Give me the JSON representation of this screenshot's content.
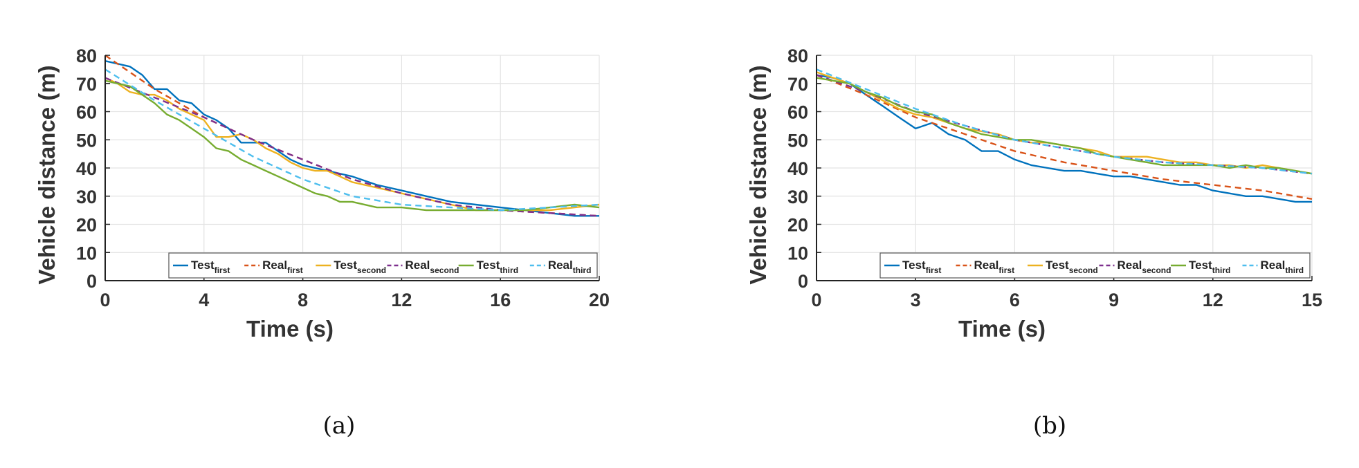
{
  "chart_data": [
    {
      "type": "line",
      "caption": "(a)",
      "xlabel": "Time (s)",
      "ylabel": "Vehicle distance (m)",
      "xlim": [
        0,
        20
      ],
      "ylim": [
        0,
        80
      ],
      "xticks": [
        0,
        4,
        8,
        12,
        16,
        20
      ],
      "yticks": [
        0,
        10,
        20,
        30,
        40,
        50,
        60,
        70,
        80
      ],
      "grid": true,
      "legend_position": "bottom",
      "series": [
        {
          "name": "Test",
          "sub": "first",
          "style": "solid",
          "color": "#0072BD",
          "x": [
            0,
            0.5,
            1,
            1.5,
            2,
            2.5,
            3,
            3.5,
            4,
            4.5,
            5,
            5.5,
            6,
            6.5,
            7,
            7.5,
            8,
            8.5,
            9,
            9.5,
            10,
            11,
            12,
            13,
            14,
            15,
            16,
            17,
            18,
            19,
            20
          ],
          "y": [
            78,
            77,
            76,
            73,
            68,
            68,
            64,
            63,
            59,
            57,
            54,
            49,
            49,
            49,
            46,
            43,
            41,
            40,
            39,
            38,
            37,
            34,
            32,
            30,
            28,
            27,
            26,
            25,
            24,
            23,
            23
          ]
        },
        {
          "name": "Real",
          "sub": "first",
          "style": "dashed",
          "color": "#D95319",
          "x": [
            0,
            2,
            4,
            6,
            8,
            10,
            12,
            14,
            16,
            18,
            20
          ],
          "y": [
            80,
            68,
            58,
            50,
            43,
            36,
            31,
            27,
            25,
            24,
            23
          ]
        },
        {
          "name": "Test",
          "sub": "second",
          "style": "solid",
          "color": "#EDB120",
          "x": [
            0,
            0.5,
            1,
            1.5,
            2,
            2.5,
            3,
            3.5,
            4,
            4.5,
            5,
            5.5,
            6,
            6.5,
            7,
            7.5,
            8,
            8.5,
            9,
            9.5,
            10,
            11,
            12,
            13,
            14,
            15,
            16,
            17,
            18,
            19,
            20
          ],
          "y": [
            72,
            70,
            67,
            66,
            66,
            64,
            61,
            59,
            57,
            51,
            51,
            52,
            50,
            47,
            45,
            42,
            40,
            39,
            39,
            37,
            35,
            33,
            31,
            29,
            27,
            25,
            25,
            25,
            25,
            26,
            27
          ]
        },
        {
          "name": "Real",
          "sub": "second",
          "style": "dashed",
          "color": "#7E2F8E",
          "x": [
            0,
            2,
            4,
            6,
            8,
            10,
            12,
            14,
            16,
            18,
            20
          ],
          "y": [
            72,
            65,
            58,
            50,
            43,
            36,
            31,
            27,
            25,
            24,
            23
          ]
        },
        {
          "name": "Test",
          "sub": "third",
          "style": "solid",
          "color": "#77AC30",
          "x": [
            0,
            0.5,
            1,
            1.5,
            2,
            2.5,
            3,
            3.5,
            4,
            4.5,
            5,
            5.5,
            6,
            6.5,
            7,
            7.5,
            8,
            8.5,
            9,
            9.5,
            10,
            11,
            12,
            13,
            14,
            15,
            16,
            17,
            18,
            19,
            20
          ],
          "y": [
            71,
            70,
            69,
            66,
            63,
            59,
            57,
            54,
            51,
            47,
            46,
            43,
            41,
            39,
            37,
            35,
            33,
            31,
            30,
            28,
            28,
            26,
            26,
            25,
            25,
            25,
            25,
            25,
            26,
            27,
            26
          ]
        },
        {
          "name": "Real",
          "sub": "third",
          "style": "dashed",
          "color": "#4DBEEE",
          "x": [
            0,
            2,
            4,
            6,
            8,
            10,
            12,
            14,
            16,
            18,
            20
          ],
          "y": [
            75,
            64,
            54,
            44,
            36,
            30,
            27,
            26,
            25,
            26,
            27
          ]
        }
      ]
    },
    {
      "type": "line",
      "caption": "(b)",
      "xlabel": "Time (s)",
      "ylabel": "Vehicle distance (m)",
      "xlim": [
        0,
        15
      ],
      "ylim": [
        0,
        80
      ],
      "xticks": [
        0,
        3,
        6,
        9,
        12,
        15
      ],
      "yticks": [
        0,
        10,
        20,
        30,
        40,
        50,
        60,
        70,
        80
      ],
      "grid": true,
      "legend_position": "bottom",
      "series": [
        {
          "name": "Test",
          "sub": "first",
          "style": "solid",
          "color": "#0072BD",
          "x": [
            0,
            0.5,
            1,
            1.5,
            2,
            2.5,
            3,
            3.5,
            4,
            4.5,
            5,
            5.5,
            6,
            6.5,
            7,
            7.5,
            8,
            8.5,
            9,
            9.5,
            10,
            10.5,
            11,
            11.5,
            12,
            12.5,
            13,
            13.5,
            14,
            14.5,
            15
          ],
          "y": [
            73,
            72,
            70,
            66,
            62,
            58,
            54,
            56,
            52,
            50,
            46,
            46,
            43,
            41,
            40,
            39,
            39,
            38,
            37,
            37,
            36,
            35,
            34,
            34,
            32,
            31,
            30,
            30,
            29,
            28,
            28
          ]
        },
        {
          "name": "Real",
          "sub": "first",
          "style": "dashed",
          "color": "#D95319",
          "x": [
            0,
            1.5,
            3,
            4.5,
            6,
            7.5,
            9,
            10.5,
            12,
            13.5,
            15
          ],
          "y": [
            73,
            66,
            58,
            52,
            46,
            42,
            39,
            36,
            34,
            32,
            29
          ]
        },
        {
          "name": "Test",
          "sub": "second",
          "style": "solid",
          "color": "#EDB120",
          "x": [
            0,
            0.5,
            1,
            1.5,
            2,
            2.5,
            3,
            3.5,
            4,
            4.5,
            5,
            5.5,
            6,
            6.5,
            7,
            7.5,
            8,
            8.5,
            9,
            9.5,
            10,
            10.5,
            11,
            11.5,
            12,
            12.5,
            13,
            13.5,
            14,
            14.5,
            15
          ],
          "y": [
            74,
            72,
            70,
            67,
            64,
            61,
            59,
            58,
            56,
            54,
            53,
            52,
            50,
            49,
            49,
            48,
            47,
            46,
            44,
            44,
            44,
            43,
            42,
            42,
            41,
            41,
            40,
            41,
            40,
            39,
            38
          ]
        },
        {
          "name": "Real",
          "sub": "second",
          "style": "dashed",
          "color": "#7E2F8E",
          "x": [
            0,
            1.5,
            3,
            4.5,
            6,
            7.5,
            9,
            10.5,
            12,
            13.5,
            15
          ],
          "y": [
            73,
            67,
            60,
            55,
            50,
            47,
            44,
            42,
            41,
            40,
            38
          ]
        },
        {
          "name": "Test",
          "sub": "third",
          "style": "solid",
          "color": "#77AC30",
          "x": [
            0,
            0.5,
            1,
            1.5,
            2,
            2.5,
            3,
            3.5,
            4,
            4.5,
            5,
            5.5,
            6,
            6.5,
            7,
            7.5,
            8,
            8.5,
            9,
            9.5,
            10,
            10.5,
            11,
            11.5,
            12,
            12.5,
            13,
            13.5,
            14,
            14.5,
            15
          ],
          "y": [
            72,
            71,
            70,
            67,
            65,
            62,
            60,
            59,
            56,
            54,
            52,
            51,
            50,
            50,
            49,
            48,
            47,
            45,
            44,
            43,
            42,
            41,
            41,
            41,
            41,
            40,
            41,
            40,
            40,
            39,
            38
          ]
        },
        {
          "name": "Real",
          "sub": "third",
          "style": "dashed",
          "color": "#4DBEEE",
          "x": [
            0,
            1.5,
            3,
            4.5,
            6,
            7.5,
            9,
            10.5,
            12,
            13.5,
            15
          ],
          "y": [
            75,
            68,
            61,
            55,
            50,
            47,
            44,
            42,
            41,
            40,
            38
          ]
        }
      ]
    }
  ]
}
